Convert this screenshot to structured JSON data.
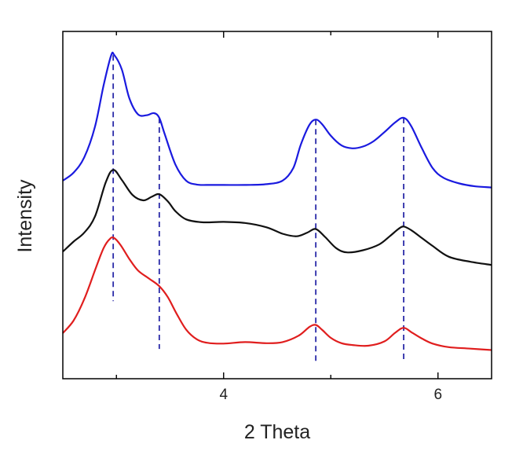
{
  "chart_data": {
    "type": "line",
    "xlabel": "2 Theta",
    "ylabel": "Intensity",
    "xlim": [
      2.5,
      6.5
    ],
    "xticks": [
      4,
      6
    ],
    "xtick_labels": [
      "4",
      "6"
    ],
    "y_tick_labels_shown": false,
    "grid": false,
    "legend": false,
    "peak_markers": {
      "style": "dashed",
      "color": "#2a2aa8",
      "x": [
        2.97,
        3.4,
        4.86,
        5.68
      ]
    },
    "series": [
      {
        "color": "#1a1adf",
        "x": [
          2.5,
          2.6,
          2.7,
          2.8,
          2.88,
          2.95,
          2.98,
          3.05,
          3.12,
          3.2,
          3.28,
          3.35,
          3.4,
          3.45,
          3.55,
          3.65,
          3.75,
          3.85,
          4.0,
          4.2,
          4.4,
          4.55,
          4.65,
          4.72,
          4.8,
          4.86,
          4.92,
          5.0,
          5.1,
          5.2,
          5.3,
          5.4,
          5.5,
          5.6,
          5.68,
          5.75,
          5.85,
          5.95,
          6.05,
          6.2,
          6.35,
          6.5
        ],
        "y": [
          4.6,
          4.82,
          5.25,
          6.1,
          7.25,
          8.08,
          8.1,
          7.7,
          6.9,
          6.45,
          6.42,
          6.48,
          6.35,
          5.9,
          5.05,
          4.6,
          4.49,
          4.48,
          4.48,
          4.48,
          4.5,
          4.6,
          4.95,
          5.6,
          6.15,
          6.3,
          6.17,
          5.85,
          5.58,
          5.5,
          5.55,
          5.7,
          5.95,
          6.22,
          6.35,
          6.12,
          5.5,
          4.95,
          4.68,
          4.52,
          4.44,
          4.41
        ]
      },
      {
        "color": "#111111",
        "x": [
          2.5,
          2.6,
          2.7,
          2.8,
          2.9,
          2.97,
          3.05,
          3.15,
          3.25,
          3.33,
          3.4,
          3.48,
          3.55,
          3.65,
          3.8,
          4.0,
          4.2,
          4.4,
          4.55,
          4.68,
          4.78,
          4.86,
          4.95,
          5.05,
          5.15,
          5.3,
          5.45,
          5.55,
          5.63,
          5.68,
          5.75,
          5.85,
          5.95,
          6.1,
          6.3,
          6.5
        ],
        "y": [
          2.62,
          2.9,
          3.15,
          3.6,
          4.55,
          4.9,
          4.62,
          4.2,
          4.05,
          4.15,
          4.22,
          4.02,
          3.75,
          3.52,
          3.44,
          3.45,
          3.42,
          3.3,
          3.12,
          3.05,
          3.15,
          3.25,
          3.02,
          2.72,
          2.6,
          2.66,
          2.82,
          3.05,
          3.25,
          3.32,
          3.22,
          3.0,
          2.78,
          2.48,
          2.34,
          2.25
        ]
      },
      {
        "color": "#e01e1e",
        "x": [
          2.5,
          2.6,
          2.7,
          2.8,
          2.88,
          2.94,
          2.98,
          3.04,
          3.12,
          3.2,
          3.3,
          3.4,
          3.48,
          3.56,
          3.65,
          3.75,
          3.85,
          4.0,
          4.2,
          4.4,
          4.55,
          4.7,
          4.8,
          4.86,
          4.92,
          5.0,
          5.1,
          5.2,
          5.35,
          5.5,
          5.6,
          5.68,
          5.76,
          5.85,
          5.95,
          6.1,
          6.3,
          6.5
        ],
        "y": [
          0.35,
          0.7,
          1.3,
          2.1,
          2.72,
          2.98,
          3.0,
          2.8,
          2.42,
          2.1,
          1.88,
          1.66,
          1.35,
          0.9,
          0.45,
          0.18,
          0.08,
          0.06,
          0.1,
          0.07,
          0.1,
          0.28,
          0.52,
          0.58,
          0.44,
          0.22,
          0.07,
          0.02,
          0.0,
          0.12,
          0.36,
          0.5,
          0.36,
          0.2,
          0.06,
          -0.04,
          -0.08,
          -0.12
        ]
      }
    ]
  }
}
